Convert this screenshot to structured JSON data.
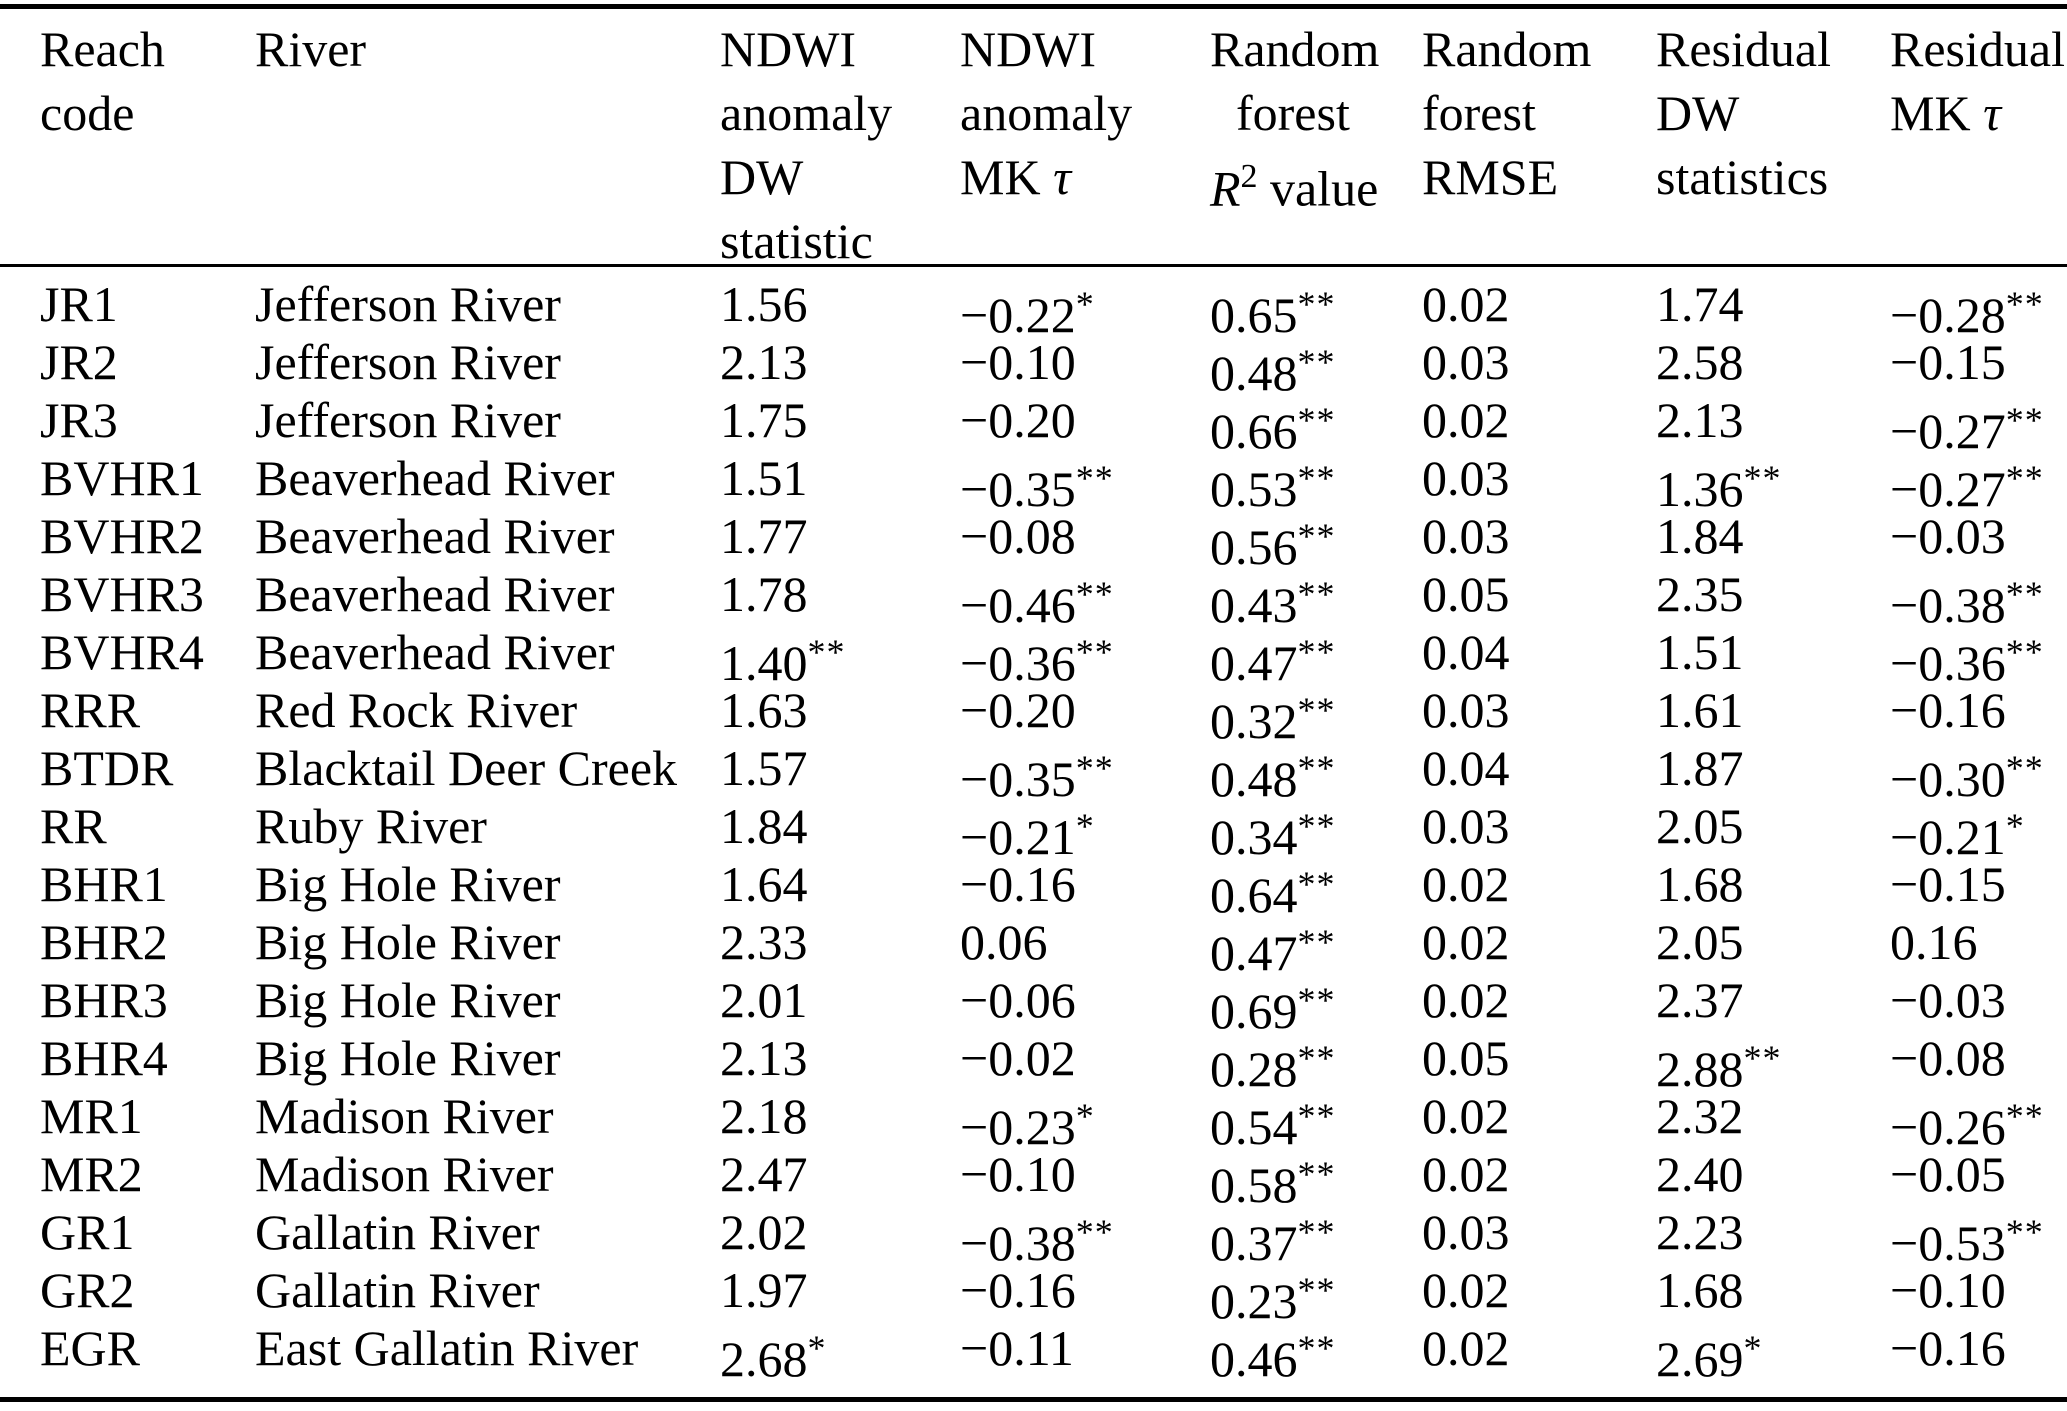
{
  "table": {
    "columns": [
      {
        "id": "code",
        "label": "Reach code",
        "lines": [
          "Reach",
          "code"
        ]
      },
      {
        "id": "river",
        "label": "River",
        "lines": [
          "River"
        ]
      },
      {
        "id": "ndwi_dw",
        "label": "NDWI anomaly DW statistic",
        "lines": [
          "NDWI",
          "anomaly",
          "DW",
          "statistic"
        ]
      },
      {
        "id": "ndwi_mk",
        "label": "NDWI anomaly MK τ",
        "lines": [
          "NDWI",
          "anomaly",
          "MK τ"
        ]
      },
      {
        "id": "rf_r2",
        "label": "Random forest R² value",
        "lines": [
          "Random",
          "forest",
          "R² value"
        ]
      },
      {
        "id": "rf_rmse",
        "label": "Random forest RMSE",
        "lines": [
          "Random",
          "forest",
          "RMSE"
        ]
      },
      {
        "id": "res_dw",
        "label": "Residual DW statistics",
        "lines": [
          "Residual",
          "DW",
          "statistics"
        ]
      },
      {
        "id": "res_mk",
        "label": "Residual MK τ",
        "lines": [
          "Residual",
          "MK τ"
        ]
      }
    ],
    "rows": [
      {
        "code": "JR1",
        "river": "Jefferson River",
        "ndwi_dw": "1.56",
        "ndwi_mk": "−0.22*",
        "rf_r2": "0.65**",
        "rf_rmse": "0.02",
        "res_dw": "1.74",
        "res_mk": "−0.28**"
      },
      {
        "code": "JR2",
        "river": "Jefferson River",
        "ndwi_dw": "2.13",
        "ndwi_mk": "−0.10",
        "rf_r2": "0.48**",
        "rf_rmse": "0.03",
        "res_dw": "2.58",
        "res_mk": "−0.15"
      },
      {
        "code": "JR3",
        "river": "Jefferson River",
        "ndwi_dw": "1.75",
        "ndwi_mk": "−0.20",
        "rf_r2": "0.66**",
        "rf_rmse": "0.02",
        "res_dw": "2.13",
        "res_mk": "−0.27**"
      },
      {
        "code": "BVHR1",
        "river": "Beaverhead River",
        "ndwi_dw": "1.51",
        "ndwi_mk": "−0.35**",
        "rf_r2": "0.53**",
        "rf_rmse": "0.03",
        "res_dw": "1.36**",
        "res_mk": "−0.27**"
      },
      {
        "code": "BVHR2",
        "river": "Beaverhead River",
        "ndwi_dw": "1.77",
        "ndwi_mk": "−0.08",
        "rf_r2": "0.56**",
        "rf_rmse": "0.03",
        "res_dw": "1.84",
        "res_mk": "−0.03"
      },
      {
        "code": "BVHR3",
        "river": "Beaverhead River",
        "ndwi_dw": "1.78",
        "ndwi_mk": "−0.46**",
        "rf_r2": "0.43**",
        "rf_rmse": "0.05",
        "res_dw": "2.35",
        "res_mk": "−0.38**"
      },
      {
        "code": "BVHR4",
        "river": "Beaverhead River",
        "ndwi_dw": "1.40**",
        "ndwi_mk": "−0.36**",
        "rf_r2": "0.47**",
        "rf_rmse": "0.04",
        "res_dw": "1.51",
        "res_mk": "−0.36**"
      },
      {
        "code": "RRR",
        "river": "Red Rock River",
        "ndwi_dw": "1.63",
        "ndwi_mk": "−0.20",
        "rf_r2": "0.32**",
        "rf_rmse": "0.03",
        "res_dw": "1.61",
        "res_mk": "−0.16"
      },
      {
        "code": "BTDR",
        "river": "Blacktail Deer Creek",
        "ndwi_dw": "1.57",
        "ndwi_mk": "−0.35**",
        "rf_r2": "0.48**",
        "rf_rmse": "0.04",
        "res_dw": "1.87",
        "res_mk": "−0.30**"
      },
      {
        "code": "RR",
        "river": "Ruby River",
        "ndwi_dw": "1.84",
        "ndwi_mk": "−0.21*",
        "rf_r2": "0.34**",
        "rf_rmse": "0.03",
        "res_dw": "2.05",
        "res_mk": "−0.21*"
      },
      {
        "code": "BHR1",
        "river": "Big Hole River",
        "ndwi_dw": "1.64",
        "ndwi_mk": "−0.16",
        "rf_r2": "0.64**",
        "rf_rmse": "0.02",
        "res_dw": "1.68",
        "res_mk": "−0.15"
      },
      {
        "code": "BHR2",
        "river": "Big Hole River",
        "ndwi_dw": "2.33",
        "ndwi_mk": "0.06",
        "rf_r2": "0.47**",
        "rf_rmse": "0.02",
        "res_dw": "2.05",
        "res_mk": "0.16"
      },
      {
        "code": "BHR3",
        "river": "Big Hole River",
        "ndwi_dw": "2.01",
        "ndwi_mk": "−0.06",
        "rf_r2": "0.69**",
        "rf_rmse": "0.02",
        "res_dw": "2.37",
        "res_mk": "−0.03"
      },
      {
        "code": "BHR4",
        "river": "Big Hole River",
        "ndwi_dw": "2.13",
        "ndwi_mk": "−0.02",
        "rf_r2": "0.28**",
        "rf_rmse": "0.05",
        "res_dw": "2.88**",
        "res_mk": "−0.08"
      },
      {
        "code": "MR1",
        "river": "Madison River",
        "ndwi_dw": "2.18",
        "ndwi_mk": "−0.23*",
        "rf_r2": "0.54**",
        "rf_rmse": "0.02",
        "res_dw": "2.32",
        "res_mk": "−0.26**"
      },
      {
        "code": "MR2",
        "river": "Madison River",
        "ndwi_dw": "2.47",
        "ndwi_mk": "−0.10",
        "rf_r2": "0.58**",
        "rf_rmse": "0.02",
        "res_dw": "2.40",
        "res_mk": "−0.05"
      },
      {
        "code": "GR1",
        "river": "Gallatin River",
        "ndwi_dw": "2.02",
        "ndwi_mk": "−0.38**",
        "rf_r2": "0.37**",
        "rf_rmse": "0.03",
        "res_dw": "2.23",
        "res_mk": "−0.53**"
      },
      {
        "code": "GR2",
        "river": "Gallatin River",
        "ndwi_dw": "1.97",
        "ndwi_mk": "−0.16",
        "rf_r2": "0.23**",
        "rf_rmse": "0.02",
        "res_dw": "1.68",
        "res_mk": "−0.10"
      },
      {
        "code": "EGR",
        "river": "East Gallatin River",
        "ndwi_dw": "2.68*",
        "ndwi_mk": "−0.11",
        "rf_r2": "0.46**",
        "rf_rmse": "0.02",
        "res_dw": "2.69*",
        "res_mk": "−0.16"
      }
    ]
  },
  "colors": {
    "text": "#000000",
    "background": "#ffffff",
    "rule": "#000000"
  }
}
